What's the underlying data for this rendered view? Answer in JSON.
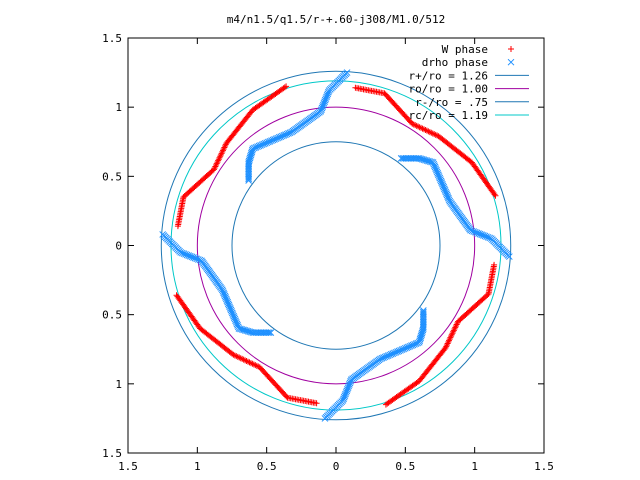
{
  "chart_data": {
    "type": "scatter",
    "title": "m4/n1.5/q1.5/r-+.60-j308/M1.0/512",
    "xlabel": "",
    "ylabel": "",
    "xlim": [
      -1.5,
      1.5
    ],
    "ylim": [
      -1.5,
      1.5
    ],
    "x_tick_values": [
      -1.5,
      -1,
      -0.5,
      0,
      0.5,
      1,
      1.5
    ],
    "x_tick_labels": [
      "1.5",
      "1",
      "0.5",
      "0",
      "0.5",
      "1",
      "1.5"
    ],
    "y_tick_values": [
      1.5,
      1,
      0.5,
      0,
      -0.5,
      -1,
      -1.5
    ],
    "y_tick_labels": [
      "1.5",
      "1",
      "0.5",
      "0",
      "0.5",
      "1",
      "1.5"
    ],
    "grid": false,
    "legend_position": "top-right",
    "arms": 4,
    "series": [
      {
        "name": "W phase",
        "kind": "points",
        "marker": "+",
        "color": "#ff0000",
        "arm_path": [
          [
            -0.36,
            1.15
          ],
          [
            -0.6,
            0.98
          ],
          [
            -0.79,
            0.74
          ],
          [
            -0.88,
            0.55
          ],
          [
            -1.1,
            0.35
          ],
          [
            -1.14,
            0.14
          ]
        ]
      },
      {
        "name": "drho phase",
        "kind": "points",
        "marker": "x",
        "color": "#1e90ff",
        "arm_path": [
          [
            0.08,
            1.25
          ],
          [
            -0.05,
            1.12
          ],
          [
            -0.11,
            0.97
          ],
          [
            -0.32,
            0.82
          ],
          [
            -0.6,
            0.7
          ],
          [
            -0.63,
            0.6
          ],
          [
            -0.63,
            0.47
          ]
        ]
      },
      {
        "name": "r+/ro = 1.26",
        "kind": "circle",
        "radius": 1.26,
        "color": "#1f77b4"
      },
      {
        "name": "ro/ro = 1.00",
        "kind": "circle",
        "radius": 1.0,
        "color": "#a000a0"
      },
      {
        "name": "r-/ro = .75",
        "kind": "circle",
        "radius": 0.75,
        "color": "#1f77b4"
      },
      {
        "name": "rc/ro = 1.19",
        "kind": "circle",
        "radius": 1.19,
        "color": "#00c8c8"
      }
    ]
  }
}
